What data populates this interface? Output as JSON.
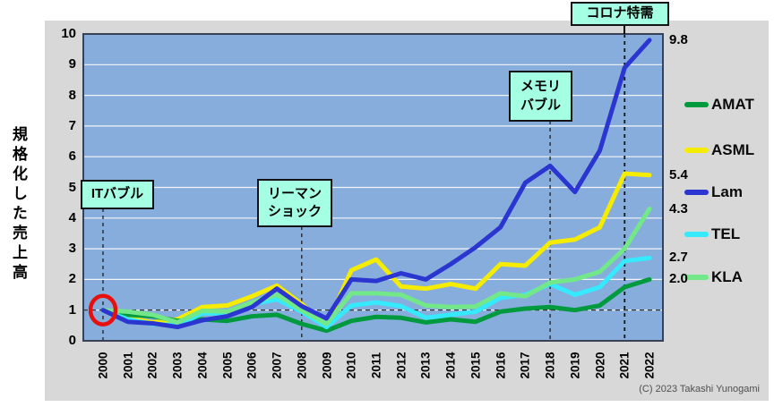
{
  "chart": {
    "y_axis_title": "規格化した売上高",
    "copyright": "(C) 2023 Takashi Yunogami",
    "annotations": {
      "it_bubble": "ITバブル",
      "lehman_line1": "リーマン",
      "lehman_line2": "ショック",
      "memory_line1": "メモリ",
      "memory_line2": "バブル",
      "corona": "コロナ特需"
    }
  },
  "chart_data": {
    "type": "line",
    "title": "",
    "xlabel": "",
    "ylabel": "規格化した売上高",
    "categories": [
      "2000",
      "2001",
      "2002",
      "2003",
      "2004",
      "2005",
      "2006",
      "2007",
      "2008",
      "2009",
      "2010",
      "2011",
      "2012",
      "2013",
      "2014",
      "2015",
      "2016",
      "2017",
      "2018",
      "2019",
      "2020",
      "2021",
      "2022"
    ],
    "series": [
      {
        "name": "AMAT",
        "color": "#009a3e",
        "end_label": "2.0",
        "values": [
          1.0,
          0.85,
          0.8,
          0.65,
          0.7,
          0.65,
          0.8,
          0.85,
          0.55,
          0.33,
          0.65,
          0.78,
          0.75,
          0.6,
          0.7,
          0.62,
          0.95,
          1.05,
          1.1,
          1.0,
          1.15,
          1.75,
          2.0
        ]
      },
      {
        "name": "ASML",
        "color": "#f6ec00",
        "end_label": "5.4",
        "values": [
          1.0,
          0.75,
          0.6,
          0.7,
          1.1,
          1.15,
          1.45,
          1.8,
          1.2,
          0.5,
          2.3,
          2.65,
          1.77,
          1.7,
          1.85,
          1.7,
          2.5,
          2.45,
          3.2,
          3.3,
          3.7,
          5.45,
          5.4
        ]
      },
      {
        "name": "Lam",
        "color": "#2b35cf",
        "end_label": "9.8",
        "values": [
          1.0,
          0.62,
          0.57,
          0.45,
          0.67,
          0.8,
          1.1,
          1.7,
          1.13,
          0.73,
          2.0,
          1.95,
          2.2,
          2.0,
          2.5,
          3.05,
          3.7,
          5.15,
          5.7,
          4.85,
          6.2,
          8.9,
          9.8
        ]
      },
      {
        "name": "TEL",
        "color": "#35eafc",
        "end_label": "2.7",
        "values": [
          1.0,
          0.7,
          0.55,
          0.5,
          0.9,
          0.9,
          1.2,
          1.35,
          0.95,
          0.45,
          1.15,
          1.25,
          1.13,
          0.75,
          0.85,
          0.95,
          1.4,
          1.5,
          1.85,
          1.5,
          1.75,
          2.6,
          2.7
        ]
      },
      {
        "name": "KLA",
        "color": "#72e889",
        "end_label": "4.3",
        "values": [
          1.0,
          0.95,
          0.85,
          0.6,
          0.98,
          0.95,
          1.25,
          1.5,
          1.0,
          0.55,
          1.55,
          1.55,
          1.5,
          1.15,
          1.1,
          1.12,
          1.55,
          1.45,
          1.9,
          2.0,
          2.25,
          3.0,
          4.3
        ]
      }
    ],
    "ylim": [
      0,
      10
    ],
    "yticks": [
      0,
      1,
      2,
      3,
      4,
      5,
      6,
      7,
      8,
      9,
      10
    ],
    "grid": "horizontal",
    "legend_position": "right",
    "reference_lines": {
      "horizontal_y": 1,
      "vertical_years": [
        "2000",
        "2008",
        "2018",
        "2021"
      ]
    },
    "highlight_circle": {
      "year": "2000",
      "value": 1
    }
  }
}
